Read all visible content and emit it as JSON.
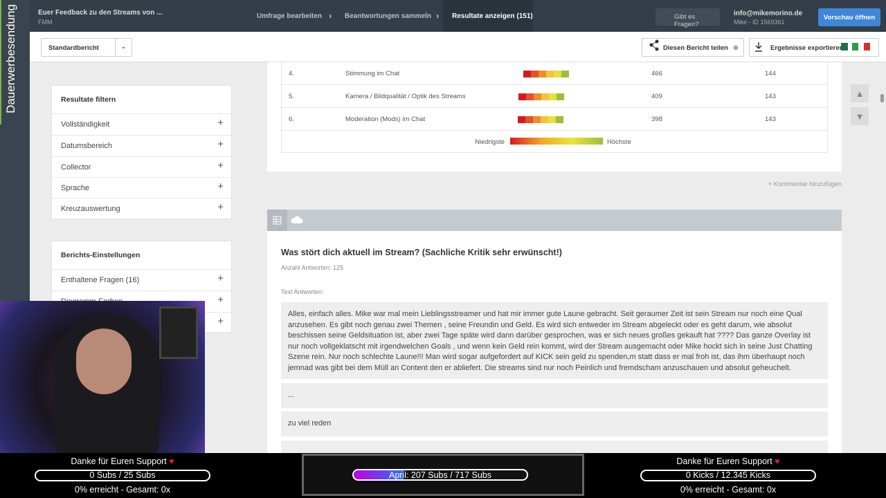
{
  "overlay": {
    "side_label": "Dauerwerbesendung",
    "left": {
      "title": "Danke für Euren Support",
      "progress": "0 Subs / 25 Subs",
      "status": "0% erreicht - Gesamt: 0x"
    },
    "center": {
      "progress": "April: 207 Subs / 717 Subs"
    },
    "right": {
      "title": "Danke für Euren Support",
      "progress": "0 Kicks / 12.345 Kicks",
      "status": "0% erreicht - Gesamt: 0x"
    }
  },
  "header": {
    "survey_title": "Euer Feedback zu den Streams von ...",
    "survey_subtitle": "FMM",
    "nav": [
      "Umfrage bearbeiten",
      "Beantwortungen sammeln",
      "Resultate anzeigen (151)"
    ],
    "help": "Gibt es Fragen?",
    "account_email": "info@mikemorino.de",
    "account_id": "Mike - ID 1569361",
    "preview_button": "Vorschau öffnen"
  },
  "toolbar": {
    "report_select": "Standardbericht",
    "share": "Diesen Bericht teilen",
    "export": "Ergebnisse exportieren"
  },
  "sidebar": {
    "filter_title": "Resultate filtern",
    "filters": [
      "Vollständigkeit",
      "Datumsbereich",
      "Collector",
      "Sprache",
      "Kreuzauswertung"
    ],
    "settings_title": "Berichts-Einstellungen",
    "settings": [
      "Enthaltene Fragen (16)",
      "Diagramm-Farben"
    ]
  },
  "rating_table": {
    "rows": [
      [
        "4.",
        "Stimmung im Chat",
        466,
        144
      ],
      [
        "5.",
        "Kamera / Bildqualität / Optik des Streams",
        409,
        143
      ],
      [
        "6.",
        "Moderation (Mods) im Chat",
        398,
        143
      ]
    ],
    "legend_low": "Niedrigste",
    "legend_high": "Höchste"
  },
  "comment_link": "+ Kommentar hinzufügen",
  "question": {
    "title": "Was stört dich aktuell im Stream? (Sachliche Kritik sehr erwünscht!)",
    "answer_count": "Anzahl Antworten: 125",
    "answers_label": "Text Antworten:",
    "answers": [
      "Alles, einfach alles. Mike war mal mein Lieblingsstreamer und hat mir immer gute Laune gebracht. Seit geraumer Zeit ist sein Stream nur noch eine Qual anzusehen. Es gibt noch genau zwei Themen , seine Freundin und Geld. Es wird sich entweder im Stream abgeleckt oder es geht darum, wie absolut beschissen seine Geldsituation ist, aber zwei Tage späte wird dann darüber gesprochen, was er sich neues großes gekauft hat ???? Das ganze Overlay ist nur noch vollgeklatscht mit irgendwelchen Goals , und wenn kein Geld rein kommt, wird der Stream ausgemacht oder Mike hockt sich in seine Just Chatting Szene rein. Nur noch schlechte Laune!!! Man wird sogar aufgefordert auf KICK sein geld zu spenden,m statt dass er mal froh ist, das ihm überhaupt noch jemnad was gibt bei dem Müll an Content den er abliefert. Die streams sind nur noch Peinlich und fremdscham anzuschauen und absolut geheuchelt.",
      "...",
      "zu viel reden"
    ]
  }
}
